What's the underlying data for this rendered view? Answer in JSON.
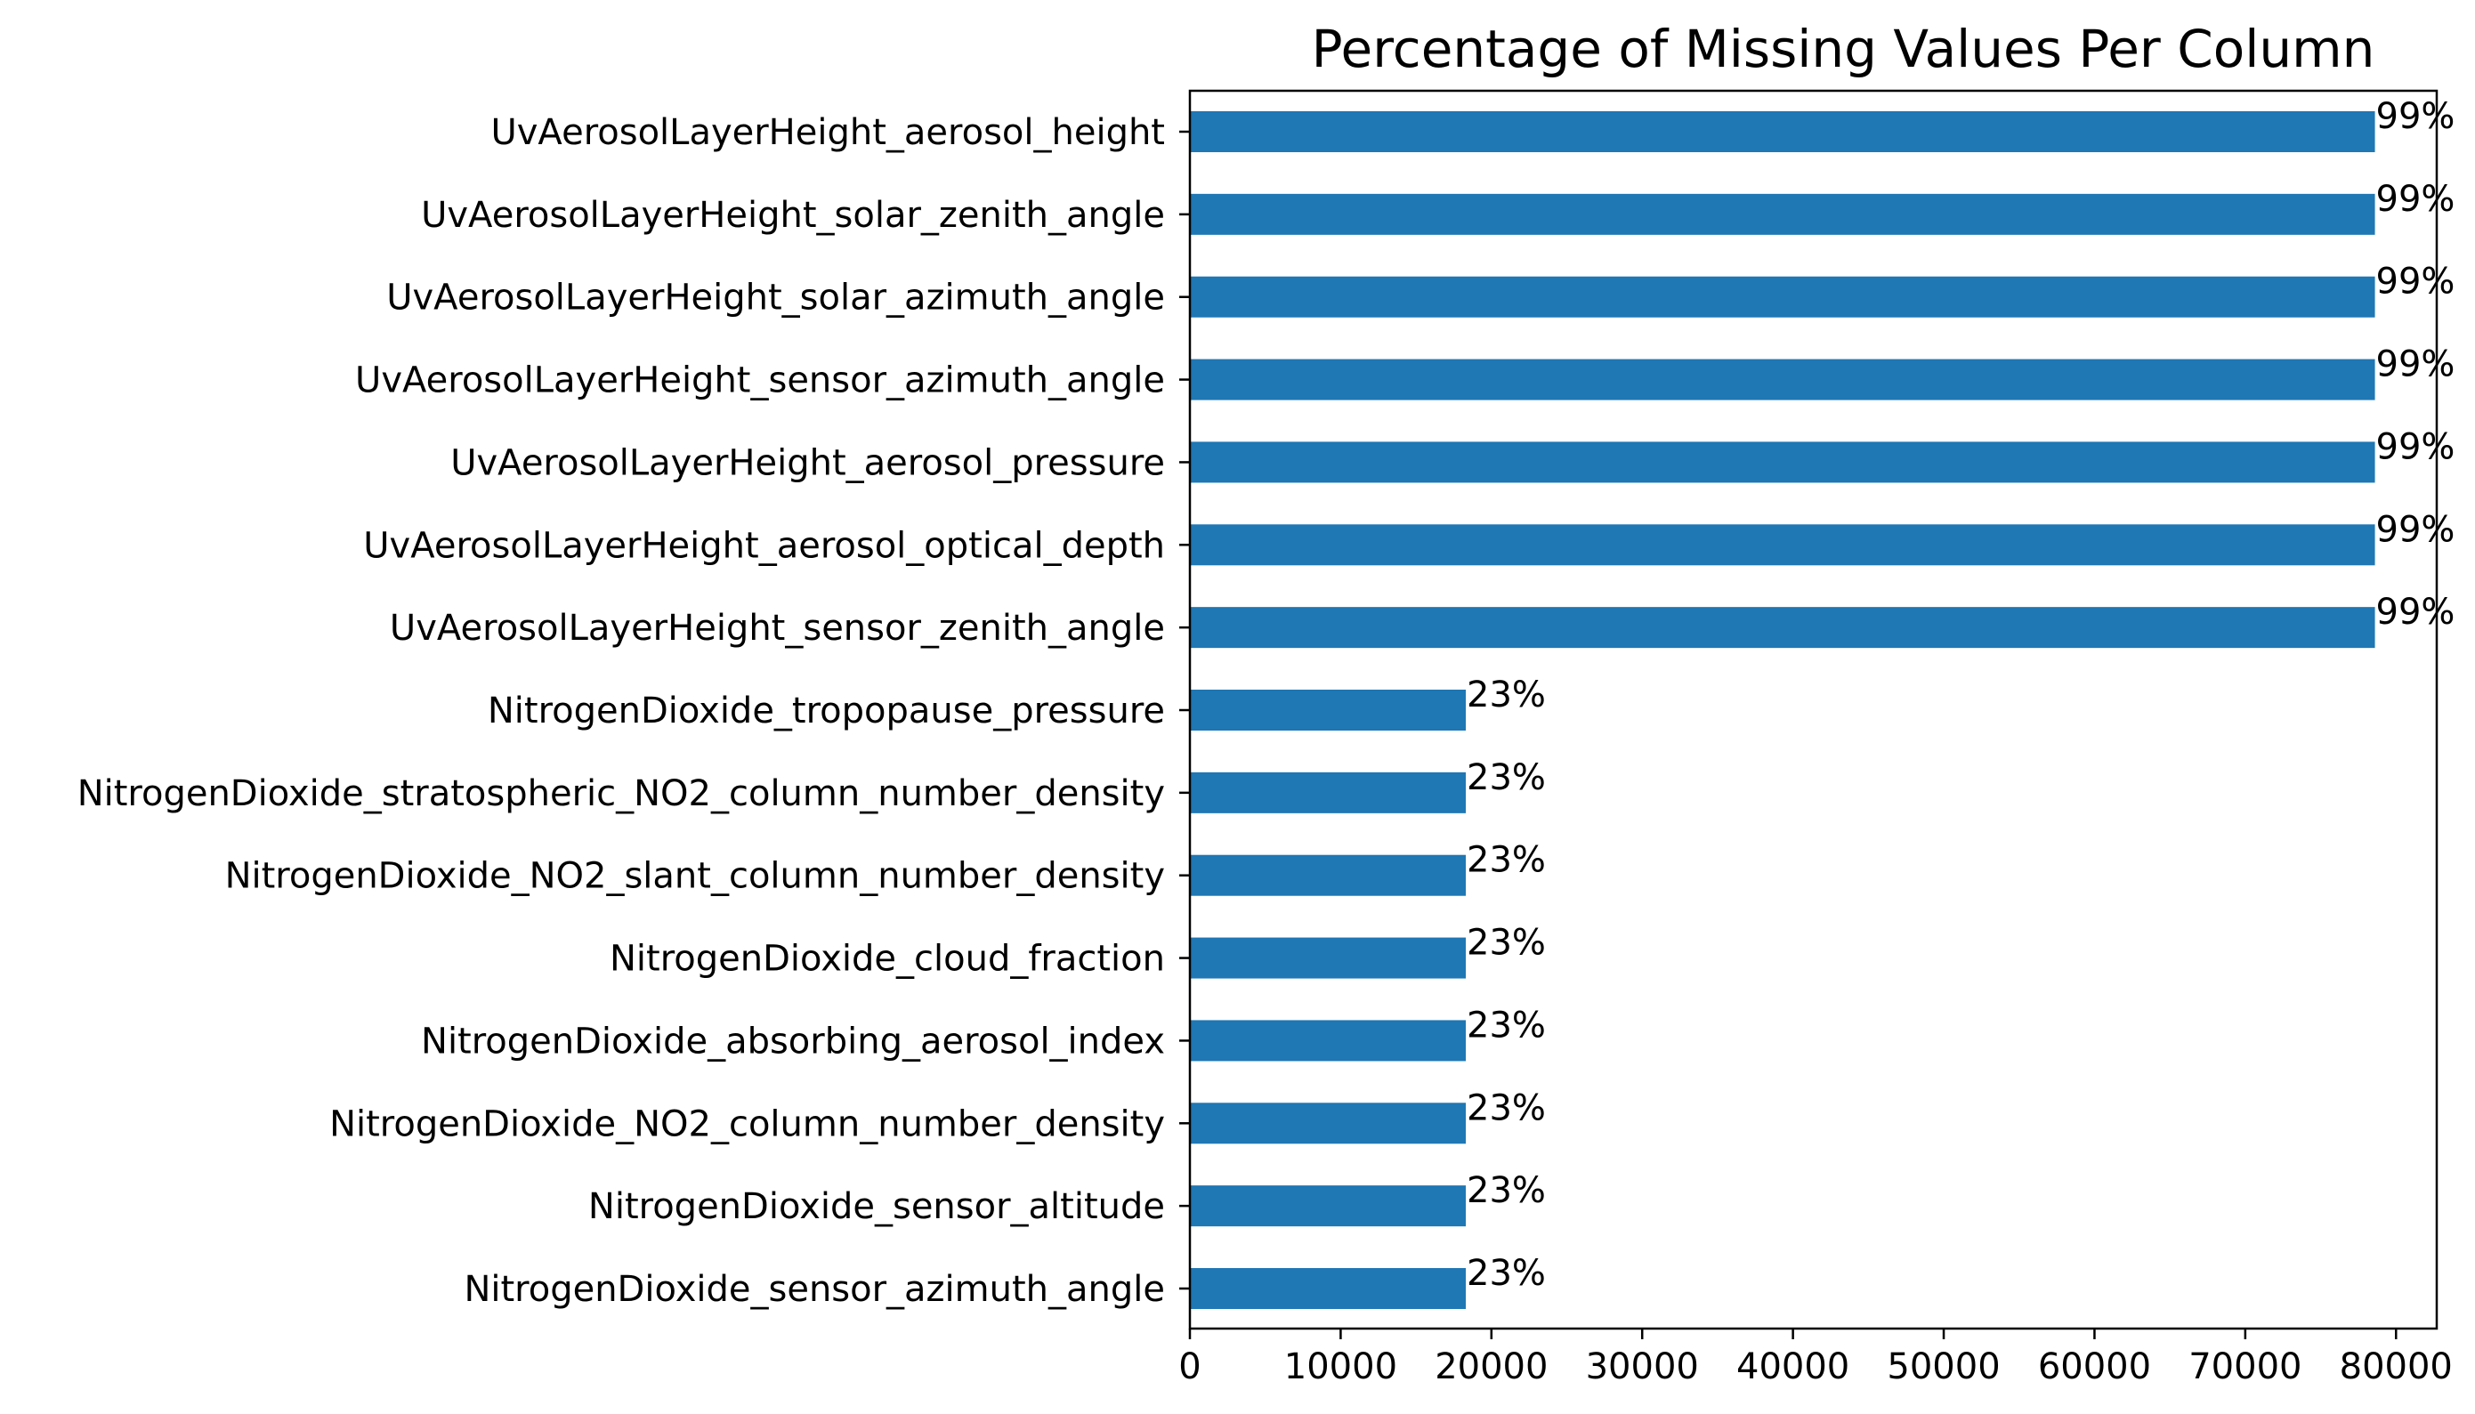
{
  "chart_data": {
    "type": "bar",
    "orientation": "horizontal",
    "title": "Percentage of Missing Values Per Column",
    "xlabel": "",
    "ylabel": "",
    "xlim": [
      0,
      82700
    ],
    "xticks": [
      0,
      10000,
      20000,
      30000,
      40000,
      50000,
      60000,
      70000,
      80000
    ],
    "grid": false,
    "bar_color": "#1f77b4",
    "categories": [
      "UvAerosolLayerHeight_aerosol_height",
      "UvAerosolLayerHeight_solar_zenith_angle",
      "UvAerosolLayerHeight_solar_azimuth_angle",
      "UvAerosolLayerHeight_sensor_azimuth_angle",
      "UvAerosolLayerHeight_aerosol_pressure",
      "UvAerosolLayerHeight_aerosol_optical_depth",
      "UvAerosolLayerHeight_sensor_zenith_angle",
      "NitrogenDioxide_tropopause_pressure",
      "NitrogenDioxide_stratospheric_NO2_column_number_density",
      "NitrogenDioxide_NO2_slant_column_number_density",
      "NitrogenDioxide_cloud_fraction",
      "NitrogenDioxide_absorbing_aerosol_index",
      "NitrogenDioxide_NO2_column_number_density",
      "NitrogenDioxide_sensor_altitude",
      "NitrogenDioxide_sensor_azimuth_angle"
    ],
    "values": [
      78600,
      78600,
      78600,
      78600,
      78600,
      78600,
      78600,
      18300,
      18300,
      18300,
      18300,
      18300,
      18300,
      18300,
      18300
    ],
    "data_labels": [
      "99%",
      "99%",
      "99%",
      "99%",
      "99%",
      "99%",
      "99%",
      "23%",
      "23%",
      "23%",
      "23%",
      "23%",
      "23%",
      "23%",
      "23%"
    ]
  }
}
